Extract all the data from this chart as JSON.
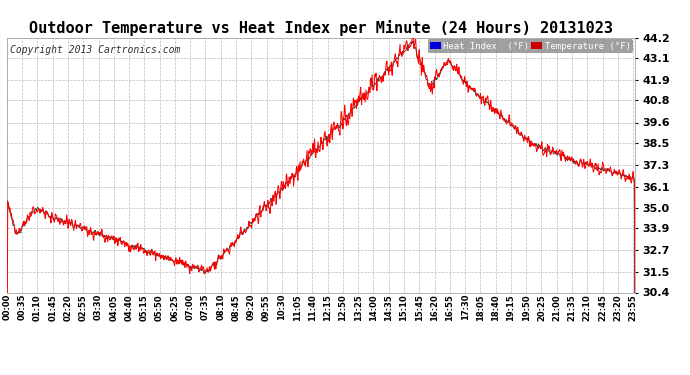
{
  "title": "Outdoor Temperature vs Heat Index per Minute (24 Hours) 20131023",
  "copyright": "Copyright 2013 Cartronics.com",
  "ylim": [
    30.4,
    44.2
  ],
  "y_ticks": [
    30.4,
    31.5,
    32.7,
    33.9,
    35.0,
    36.1,
    37.3,
    38.5,
    39.6,
    40.8,
    41.9,
    43.1,
    44.2
  ],
  "heat_index_color": "#ff0000",
  "temp_color": "#404040",
  "background_color": "#ffffff",
  "grid_color": "#bbbbbb",
  "legend_heat_bg": "#0000dd",
  "legend_temp_bg": "#cc0000",
  "title_fontsize": 11,
  "copyright_fontsize": 7,
  "x_tick_interval": 35,
  "total_minutes": 1440
}
